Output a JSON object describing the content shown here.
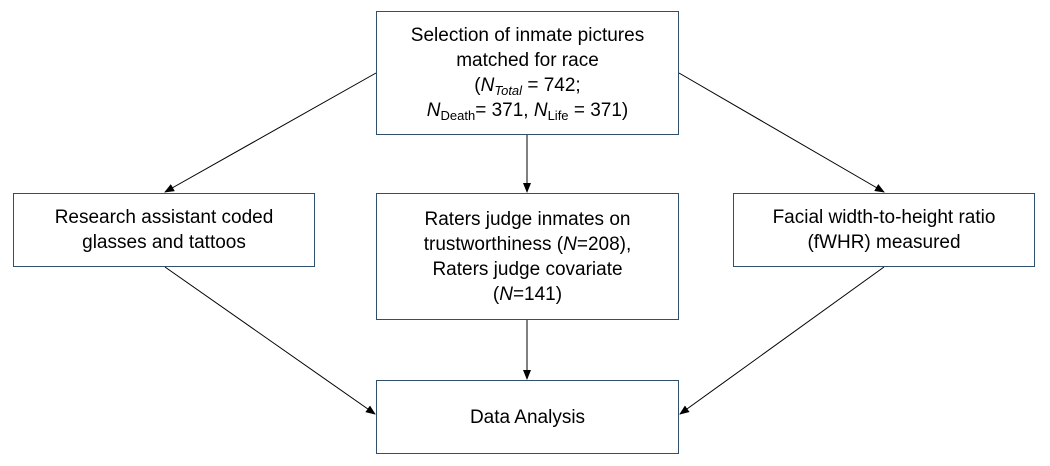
{
  "nodes": {
    "selection": {
      "line1": "Selection of inmate pictures",
      "line2": "matched for race",
      "open_paren": "(",
      "n_symbol": "N",
      "total_sub": "Total",
      "total_value": " = 742;",
      "death_sub": "Death",
      "death_value": "= 371, ",
      "life_sub": "Life",
      "life_value": " = 371)"
    },
    "research_assistant": {
      "line1": "Research assistant coded",
      "line2": "glasses and tattoos"
    },
    "raters": {
      "line1": "Raters judge inmates on",
      "line2_pre": "trustworthiness (",
      "n_symbol": "N",
      "line2_post": "=208),",
      "line3": "Raters judge covariate",
      "line4_pre": "(",
      "line4_post": "=141)"
    },
    "fwhr": {
      "line1": "Facial width-to-height ratio",
      "line2": "(fWHR) measured"
    },
    "analysis": {
      "label": "Data Analysis"
    }
  },
  "edges": [
    {
      "from": "selection",
      "to": "research_assistant"
    },
    {
      "from": "selection",
      "to": "raters"
    },
    {
      "from": "selection",
      "to": "fwhr"
    },
    {
      "from": "research_assistant",
      "to": "analysis"
    },
    {
      "from": "raters",
      "to": "analysis"
    },
    {
      "from": "fwhr",
      "to": "analysis"
    }
  ],
  "colors": {
    "box_border": "#2f4f6f",
    "arrow": "#000000",
    "text": "#000000"
  }
}
